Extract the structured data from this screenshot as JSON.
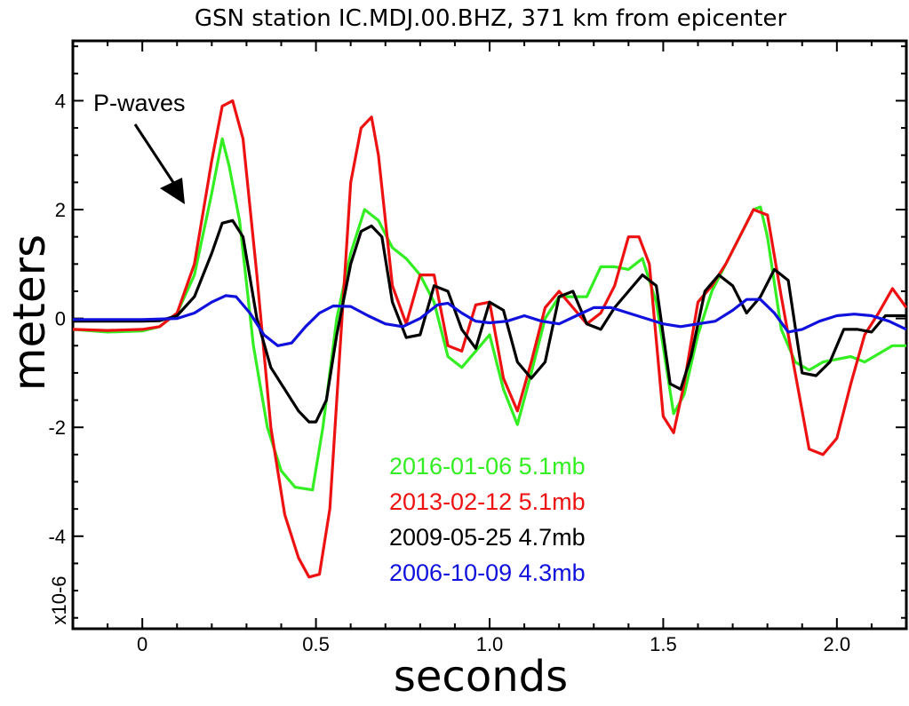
{
  "chart_data": {
    "type": "line",
    "title": "GSN station IC.MDJ.00.BHZ, 371 km from epicenter",
    "xlabel": "seconds",
    "ylabel": "meters",
    "y_multiplier_label": "x10-6",
    "xlim": [
      -0.2,
      2.2
    ],
    "ylim": [
      -5.7,
      5.1
    ],
    "x_ticks": [
      0,
      0.5,
      1.0,
      1.5,
      2.0
    ],
    "x_tick_labels": [
      "0",
      "0.5",
      "1.0",
      "1.5",
      "2.0"
    ],
    "y_ticks": [
      -4,
      -2,
      0,
      2,
      4
    ],
    "y_tick_labels": [
      "-4",
      "-2",
      "0",
      "2",
      "4"
    ],
    "annotation": "P-waves",
    "legend_placement": "bottom-center",
    "grid": false,
    "series": [
      {
        "name": "2016-01-06 5.1mb",
        "color": "#33ee22",
        "x": [
          -0.2,
          -0.1,
          0.0,
          0.05,
          0.1,
          0.15,
          0.2,
          0.23,
          0.25,
          0.28,
          0.32,
          0.36,
          0.4,
          0.44,
          0.49,
          0.52,
          0.56,
          0.6,
          0.64,
          0.68,
          0.72,
          0.76,
          0.8,
          0.84,
          0.88,
          0.92,
          0.96,
          1.0,
          1.04,
          1.08,
          1.12,
          1.16,
          1.2,
          1.24,
          1.28,
          1.32,
          1.36,
          1.4,
          1.44,
          1.48,
          1.53,
          1.56,
          1.6,
          1.64,
          1.68,
          1.72,
          1.76,
          1.78,
          1.8,
          1.84,
          1.88,
          1.92,
          1.96,
          2.0,
          2.04,
          2.08,
          2.12,
          2.16,
          2.2
        ],
        "y": [
          -0.2,
          -0.25,
          -0.23,
          -0.15,
          0.1,
          0.8,
          2.3,
          3.3,
          2.8,
          1.8,
          -0.5,
          -2.0,
          -2.8,
          -3.1,
          -3.15,
          -2.0,
          0.0,
          1.2,
          2.0,
          1.8,
          1.3,
          1.1,
          0.8,
          0.3,
          -0.7,
          -0.9,
          -0.6,
          -0.3,
          -1.3,
          -1.95,
          -1.0,
          0.0,
          0.4,
          0.4,
          0.4,
          0.95,
          0.95,
          0.9,
          1.1,
          0.3,
          -1.75,
          -1.4,
          -0.3,
          0.5,
          1.0,
          1.5,
          2.0,
          2.05,
          1.5,
          -0.2,
          -0.8,
          -0.95,
          -0.8,
          -0.75,
          -0.7,
          -0.8,
          -0.65,
          -0.5,
          -0.5
        ]
      },
      {
        "name": "2013-02-12 5.1mb",
        "color": "#ee1111",
        "x": [
          -0.2,
          -0.1,
          0.0,
          0.05,
          0.1,
          0.15,
          0.2,
          0.23,
          0.26,
          0.29,
          0.33,
          0.37,
          0.41,
          0.45,
          0.48,
          0.51,
          0.54,
          0.57,
          0.6,
          0.63,
          0.66,
          0.68,
          0.72,
          0.76,
          0.8,
          0.84,
          0.88,
          0.92,
          0.96,
          1.0,
          1.04,
          1.08,
          1.12,
          1.16,
          1.2,
          1.24,
          1.28,
          1.32,
          1.36,
          1.4,
          1.43,
          1.46,
          1.5,
          1.53,
          1.56,
          1.6,
          1.64,
          1.68,
          1.72,
          1.76,
          1.8,
          1.84,
          1.88,
          1.92,
          1.96,
          2.0,
          2.04,
          2.08,
          2.12,
          2.16,
          2.2
        ],
        "y": [
          -0.2,
          -0.22,
          -0.2,
          -0.15,
          0.1,
          1.0,
          2.9,
          3.9,
          4.0,
          3.3,
          0.8,
          -2.0,
          -3.6,
          -4.4,
          -4.75,
          -4.7,
          -3.5,
          -0.5,
          2.5,
          3.5,
          3.7,
          3.0,
          0.6,
          -0.1,
          0.8,
          0.8,
          -0.5,
          -0.6,
          0.25,
          0.3,
          -1.1,
          -1.7,
          -0.8,
          0.2,
          0.5,
          0.2,
          -0.1,
          0.1,
          0.6,
          1.5,
          1.5,
          1.0,
          -1.8,
          -2.1,
          -1.2,
          0.3,
          0.6,
          1.0,
          1.5,
          2.0,
          1.9,
          0.4,
          -1.0,
          -2.4,
          -2.5,
          -2.2,
          -1.2,
          -0.3,
          0.1,
          0.55,
          0.2
        ]
      },
      {
        "name": "2009-05-25 4.7mb",
        "color": "#000000",
        "x": [
          -0.2,
          -0.1,
          0.0,
          0.05,
          0.1,
          0.15,
          0.2,
          0.23,
          0.26,
          0.29,
          0.33,
          0.37,
          0.41,
          0.45,
          0.48,
          0.5,
          0.53,
          0.56,
          0.6,
          0.63,
          0.66,
          0.69,
          0.72,
          0.76,
          0.8,
          0.84,
          0.88,
          0.92,
          0.96,
          1.0,
          1.04,
          1.08,
          1.12,
          1.16,
          1.2,
          1.24,
          1.28,
          1.32,
          1.36,
          1.4,
          1.44,
          1.48,
          1.52,
          1.55,
          1.58,
          1.62,
          1.66,
          1.7,
          1.74,
          1.78,
          1.82,
          1.86,
          1.9,
          1.94,
          1.98,
          2.02,
          2.06,
          2.1,
          2.14,
          2.18,
          2.2
        ],
        "y": [
          -0.05,
          -0.05,
          -0.05,
          -0.04,
          0.05,
          0.4,
          1.2,
          1.75,
          1.8,
          1.5,
          0.0,
          -0.9,
          -1.3,
          -1.7,
          -1.9,
          -1.9,
          -1.5,
          -0.3,
          1.0,
          1.6,
          1.7,
          1.5,
          0.3,
          -0.35,
          -0.3,
          0.6,
          0.5,
          -0.2,
          -0.55,
          0.3,
          0.15,
          -0.8,
          -1.1,
          -0.8,
          0.4,
          0.5,
          -0.1,
          -0.2,
          0.2,
          0.5,
          0.8,
          0.6,
          -1.2,
          -1.3,
          -0.7,
          0.5,
          0.8,
          0.6,
          0.1,
          0.4,
          0.9,
          0.7,
          -1.0,
          -1.05,
          -0.8,
          -0.2,
          -0.2,
          -0.25,
          0.05,
          0.05,
          0.05
        ]
      },
      {
        "name": "2006-10-09 4.3mb",
        "color": "#1111dd",
        "x": [
          -0.2,
          -0.1,
          0.0,
          0.1,
          0.15,
          0.2,
          0.24,
          0.27,
          0.31,
          0.35,
          0.39,
          0.43,
          0.47,
          0.51,
          0.55,
          0.6,
          0.65,
          0.7,
          0.75,
          0.8,
          0.85,
          0.88,
          0.92,
          0.96,
          1.0,
          1.05,
          1.1,
          1.15,
          1.2,
          1.25,
          1.3,
          1.35,
          1.4,
          1.45,
          1.5,
          1.55,
          1.6,
          1.65,
          1.7,
          1.74,
          1.78,
          1.82,
          1.86,
          1.9,
          1.95,
          2.0,
          2.05,
          2.1,
          2.15,
          2.2
        ],
        "y": [
          -0.02,
          -0.02,
          -0.02,
          0.0,
          0.1,
          0.3,
          0.42,
          0.4,
          0.1,
          -0.3,
          -0.5,
          -0.45,
          -0.15,
          0.1,
          0.23,
          0.22,
          0.05,
          -0.1,
          -0.15,
          0.0,
          0.25,
          0.28,
          0.1,
          -0.05,
          -0.08,
          -0.05,
          0.05,
          -0.05,
          -0.1,
          0.05,
          0.2,
          0.2,
          0.1,
          0.0,
          -0.1,
          -0.15,
          -0.1,
          -0.05,
          0.15,
          0.35,
          0.35,
          0.1,
          -0.25,
          -0.2,
          -0.05,
          0.05,
          0.08,
          0.05,
          -0.05,
          -0.2
        ]
      }
    ]
  }
}
